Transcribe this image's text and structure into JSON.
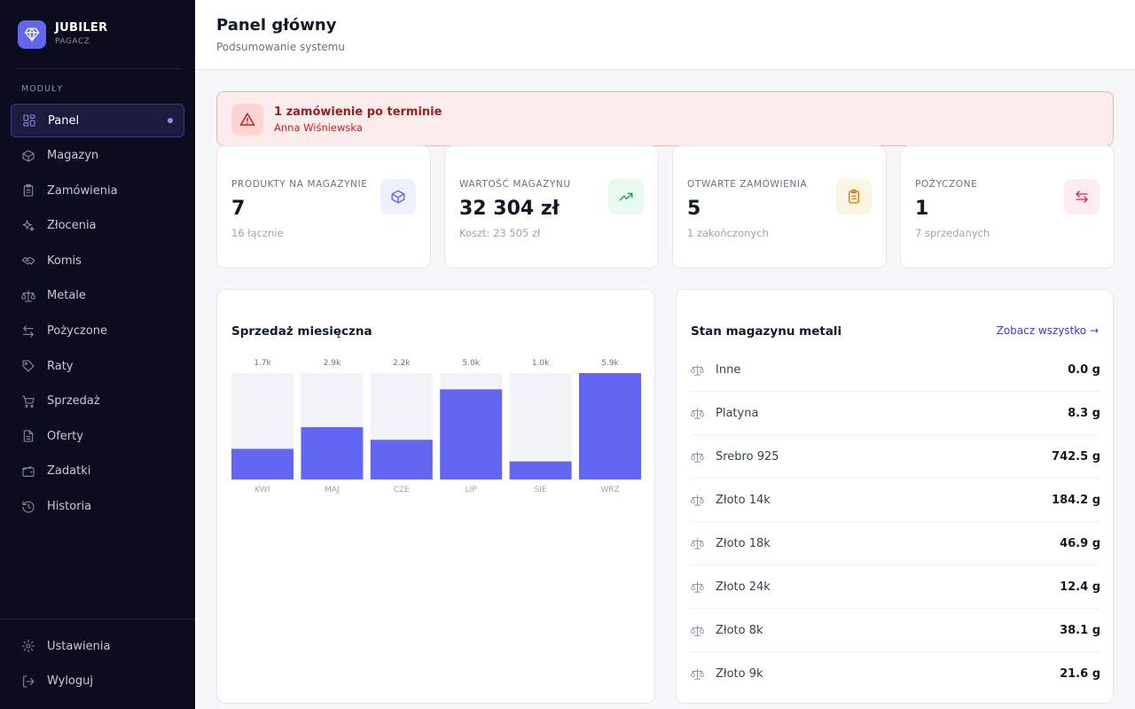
{
  "brand": {
    "name": "JUBILER",
    "subtitle": "PAGACZ"
  },
  "sidebar": {
    "section_label": "MODUŁY",
    "items": [
      {
        "label": "Panel",
        "icon": "dashboard-icon",
        "active": true
      },
      {
        "label": "Magazyn",
        "icon": "box-icon"
      },
      {
        "label": "Zamówienia",
        "icon": "clipboard-icon"
      },
      {
        "label": "Złocenia",
        "icon": "sparkles-icon"
      },
      {
        "label": "Komis",
        "icon": "handshake-icon"
      },
      {
        "label": "Metale",
        "icon": "scale-icon"
      },
      {
        "label": "Pożyczone",
        "icon": "arrows-exchange-icon"
      },
      {
        "label": "Raty",
        "icon": "tag-icon"
      },
      {
        "label": "Sprzedaż",
        "icon": "cart-icon"
      },
      {
        "label": "Oferty",
        "icon": "document-icon"
      },
      {
        "label": "Zadatki",
        "icon": "wallet-icon"
      },
      {
        "label": "Historia",
        "icon": "history-icon"
      }
    ],
    "bottom_items": [
      {
        "label": "Ustawienia",
        "icon": "gear-icon"
      },
      {
        "label": "Wyloguj",
        "icon": "logout-icon"
      }
    ]
  },
  "header": {
    "title": "Panel główny",
    "subtitle": "Podsumowanie systemu"
  },
  "alert": {
    "title": "1 zamówienie po terminie",
    "subtitle": "Anna Wiśniewska",
    "icon": "warning-triangle-icon"
  },
  "stats": [
    {
      "label": "PRODUKTY NA MAGAZYNIE",
      "value": "7",
      "sub": "16 łącznie",
      "icon": "cube-icon",
      "color": "#6366f1",
      "bg": "#eef0ff"
    },
    {
      "label": "WARTOŚĆ MAGAZYNU",
      "value": "32 304 zł",
      "sub": "Koszt: 23 505 zł",
      "icon": "trending-up-icon",
      "color": "#16a34a",
      "bg": "#e9f9ef"
    },
    {
      "label": "OTWARTE ZAMÓWIENIA",
      "value": "5",
      "sub": "1 zakończonych",
      "icon": "clipboard-list-icon",
      "color": "#d97706",
      "bg": "#fdf5e3"
    },
    {
      "label": "POŻYCZONE",
      "value": "1",
      "sub": "7 sprzedanych",
      "icon": "arrows-exchange-icon",
      "color": "#e11d48",
      "bg": "#fdecef"
    }
  ],
  "sales_panel": {
    "title": "Sprzedaż miesięczna"
  },
  "chart_data": {
    "type": "bar",
    "title": "Sprzedaż miesięczna",
    "categories": [
      "KWI",
      "MAJ",
      "CZE",
      "LIP",
      "SIE",
      "WRZ"
    ],
    "values": [
      1700,
      2900,
      2200,
      5000,
      1000,
      5900
    ],
    "value_labels": [
      "1.7k",
      "2.9k",
      "2.2k",
      "5.0k",
      "1.0k",
      "5.9k"
    ],
    "ylim": [
      0,
      5900
    ],
    "grid": false,
    "bar_color": "#6366f1",
    "track_color": "#f1f3f6"
  },
  "metals_panel": {
    "title": "Stan magazynu metali",
    "see_all": "Zobacz wszystko →",
    "rows": [
      {
        "name": "Inne",
        "weight": "0.0 g"
      },
      {
        "name": "Platyna",
        "weight": "8.3 g"
      },
      {
        "name": "Srebro 925",
        "weight": "742.5 g"
      },
      {
        "name": "Złoto 14k",
        "weight": "184.2 g"
      },
      {
        "name": "Złoto 18k",
        "weight": "46.9 g"
      },
      {
        "name": "Złoto 24k",
        "weight": "12.4 g"
      },
      {
        "name": "Złoto 8k",
        "weight": "38.1 g"
      },
      {
        "name": "Złoto 9k",
        "weight": "21.6 g"
      }
    ]
  }
}
